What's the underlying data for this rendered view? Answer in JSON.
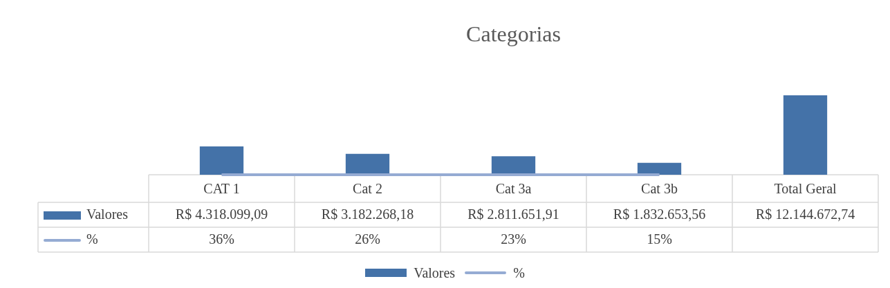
{
  "chart_data": {
    "type": "bar",
    "title": "Categorias",
    "categories": [
      "CAT 1",
      "Cat 2",
      "Cat 3a",
      "Cat 3b",
      "Total Geral"
    ],
    "series": [
      {
        "name": "Valores",
        "color": "#4472a8",
        "values": [
          4318099.09,
          3182268.18,
          2811651.91,
          1832653.56,
          12144672.74
        ],
        "value_labels": [
          "R$ 4.318.099,09",
          "R$ 3.182.268,18",
          "R$ 2.811.651,91",
          "R$ 1.832.653,56",
          "R$ 12.144.672,74"
        ]
      },
      {
        "name": "%",
        "type": "line",
        "color": "#95abd3",
        "values": [
          36,
          26,
          23,
          15,
          null
        ],
        "value_labels": [
          "36%",
          "26%",
          "23%",
          "15%",
          null
        ]
      }
    ],
    "tick_labels": "x",
    "grid": false,
    "legend": "bottom",
    "marker": "none",
    "line_style": "solid"
  }
}
